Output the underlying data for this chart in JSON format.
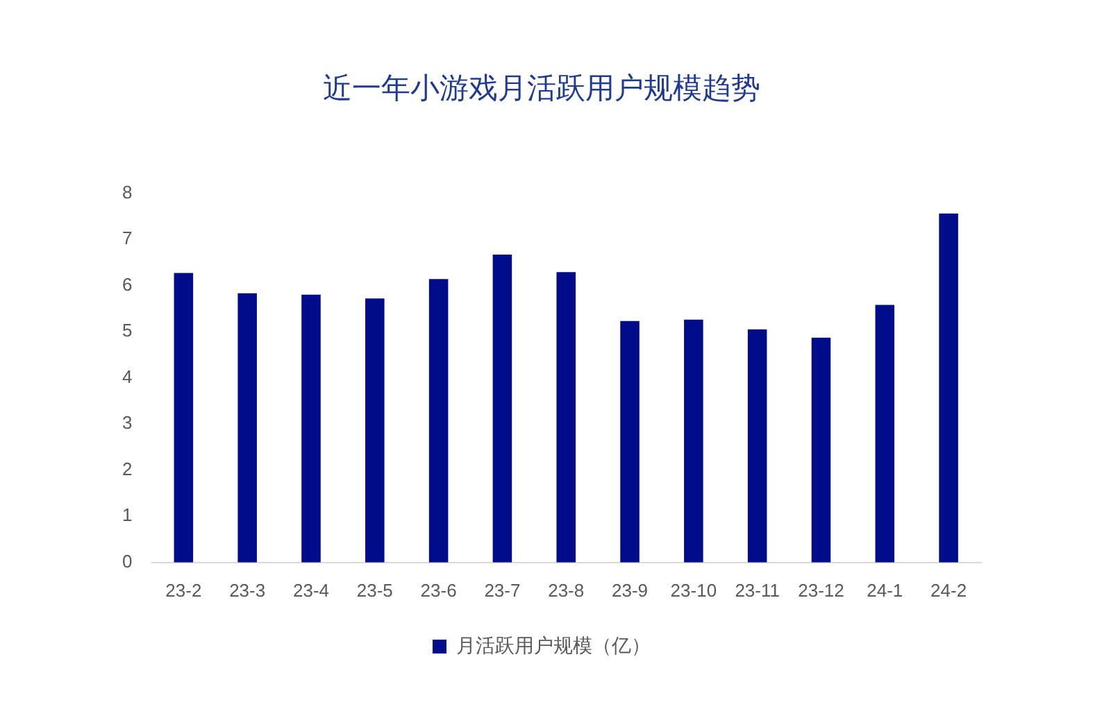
{
  "chart_data": {
    "type": "bar",
    "title": "近一年小游戏月活跃用户规模趋势",
    "categories": [
      "23-2",
      "23-3",
      "23-4",
      "23-5",
      "23-6",
      "23-7",
      "23-8",
      "23-9",
      "23-10",
      "23-11",
      "23-12",
      "24-1",
      "24-2"
    ],
    "series": [
      {
        "name": "月活跃用户规模（亿）",
        "color": "#000c8a",
        "values": [
          6.27,
          5.83,
          5.8,
          5.72,
          6.14,
          6.67,
          6.29,
          5.23,
          5.26,
          5.05,
          4.87,
          5.58,
          7.56
        ]
      }
    ],
    "ylim": [
      0,
      8
    ],
    "yticks": [
      0,
      1,
      2,
      3,
      4,
      5,
      6,
      7,
      8
    ],
    "grid": false,
    "legend": "bottom"
  }
}
